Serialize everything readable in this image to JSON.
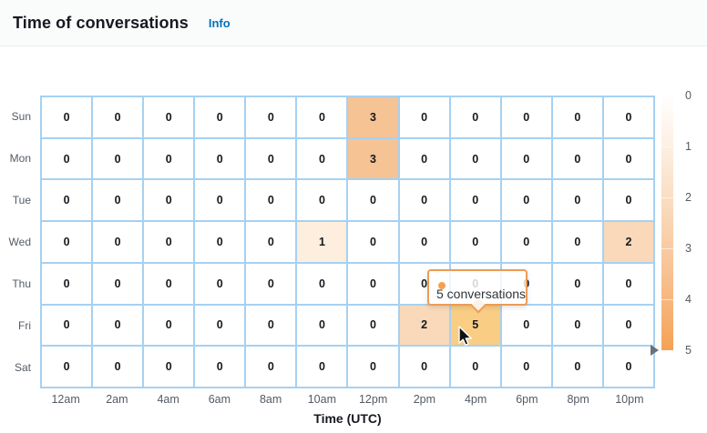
{
  "header": {
    "title": "Time of conversations",
    "info_label": "Info"
  },
  "chart_data": {
    "type": "heatmap",
    "title": "Time of conversations",
    "xlabel": "Time (UTC)",
    "columns": [
      "12am",
      "2am",
      "4am",
      "6am",
      "8am",
      "10am",
      "12pm",
      "2pm",
      "4pm",
      "6pm",
      "8pm",
      "10pm"
    ],
    "rows": [
      "Sun",
      "Mon",
      "Tue",
      "Wed",
      "Thu",
      "Fri",
      "Sat"
    ],
    "values": [
      [
        0,
        0,
        0,
        0,
        0,
        0,
        3,
        0,
        0,
        0,
        0,
        0
      ],
      [
        0,
        0,
        0,
        0,
        0,
        0,
        3,
        0,
        0,
        0,
        0,
        0
      ],
      [
        0,
        0,
        0,
        0,
        0,
        0,
        0,
        0,
        0,
        0,
        0,
        0
      ],
      [
        0,
        0,
        0,
        0,
        0,
        1,
        0,
        0,
        0,
        0,
        0,
        2
      ],
      [
        0,
        0,
        0,
        0,
        0,
        0,
        0,
        0,
        0,
        0,
        0,
        0
      ],
      [
        0,
        0,
        0,
        0,
        0,
        0,
        0,
        2,
        5,
        0,
        0,
        0
      ],
      [
        0,
        0,
        0,
        0,
        0,
        0,
        0,
        0,
        0,
        0,
        0,
        0
      ]
    ],
    "value_colors": {
      "0": "#ffffff",
      "1": "#fdeede",
      "2": "#f9d9ba",
      "3": "#f6c394",
      "5": "#f9cd84"
    },
    "color_scale": {
      "ticks": [
        "0",
        "1",
        "2",
        "3",
        "4",
        "5"
      ],
      "low_color": "#ffffff",
      "high_color": "#f5a254",
      "marker_value": "5"
    },
    "hovered_cell": {
      "row": "Fri",
      "column": "4pm",
      "value": 5
    },
    "legend_position": "right",
    "grid": true
  },
  "tooltip": {
    "text": "5 conversations",
    "marker_color": "#f5a14f"
  },
  "colors": {
    "grid_line": "#a6d1f2",
    "axis_label": "#545b64",
    "title_text": "#16191f",
    "info_link": "#0073bb",
    "tooltip_border": "#ec9c56",
    "header_bg": "#fafbfb",
    "header_border": "#eaeded",
    "legend_marker": "#6a7177"
  }
}
